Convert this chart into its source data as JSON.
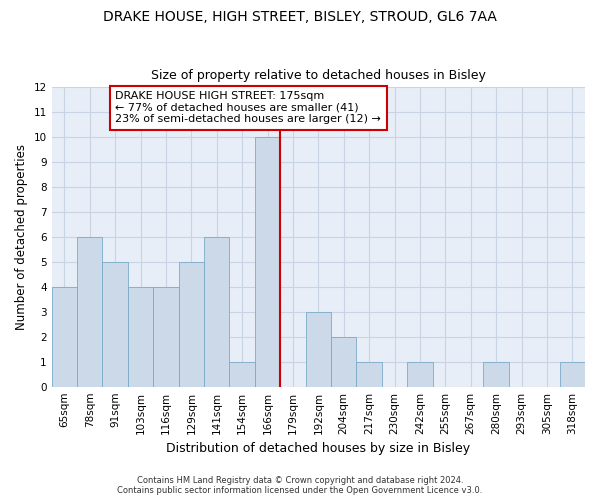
{
  "title": "DRAKE HOUSE, HIGH STREET, BISLEY, STROUD, GL6 7AA",
  "subtitle": "Size of property relative to detached houses in Bisley",
  "xlabel": "Distribution of detached houses by size in Bisley",
  "ylabel": "Number of detached properties",
  "categories": [
    "65sqm",
    "78sqm",
    "91sqm",
    "103sqm",
    "116sqm",
    "129sqm",
    "141sqm",
    "154sqm",
    "166sqm",
    "179sqm",
    "192sqm",
    "204sqm",
    "217sqm",
    "230sqm",
    "242sqm",
    "255sqm",
    "267sqm",
    "280sqm",
    "293sqm",
    "305sqm",
    "318sqm"
  ],
  "values": [
    4,
    6,
    5,
    4,
    4,
    5,
    6,
    1,
    10,
    0,
    3,
    2,
    1,
    0,
    1,
    0,
    0,
    1,
    0,
    0,
    1
  ],
  "bar_color": "#ccd9e8",
  "bar_edge_color": "#7aaac8",
  "vline_index": 8,
  "vline_color": "#cc0000",
  "annotation_text_line1": "DRAKE HOUSE HIGH STREET: 175sqm",
  "annotation_text_line2": "← 77% of detached houses are smaller (41)",
  "annotation_text_line3": "23% of semi-detached houses are larger (12) →",
  "ylim": [
    0,
    12
  ],
  "yticks": [
    0,
    1,
    2,
    3,
    4,
    5,
    6,
    7,
    8,
    9,
    10,
    11,
    12
  ],
  "grid_color": "#c8d4e4",
  "background_color": "#e8eef8",
  "footer_line1": "Contains HM Land Registry data © Crown copyright and database right 2024.",
  "footer_line2": "Contains public sector information licensed under the Open Government Licence v3.0.",
  "title_fontsize": 10,
  "subtitle_fontsize": 9,
  "xlabel_fontsize": 9,
  "ylabel_fontsize": 8.5,
  "annotation_fontsize": 8,
  "tick_fontsize": 7.5
}
